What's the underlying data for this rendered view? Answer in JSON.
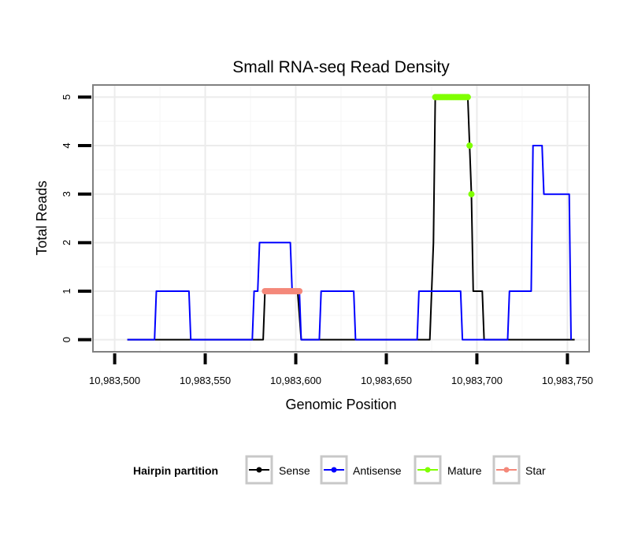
{
  "chart_data": {
    "type": "line",
    "title": "Small RNA-seq Read Density",
    "xlabel": "Genomic Position",
    "ylabel": "Total Reads",
    "xlim": [
      10983488,
      10983762
    ],
    "ylim": [
      -0.25,
      5.25
    ],
    "x_ticks": [
      10983500,
      10983550,
      10983600,
      10983650,
      10983700,
      10983750
    ],
    "x_tick_labels": [
      "10,983,500",
      "10,983,550",
      "10,983,600",
      "10,983,650",
      "10,983,700",
      "10,983,750"
    ],
    "y_ticks": [
      0,
      1,
      2,
      3,
      4,
      5
    ],
    "y_tick_labels": [
      "0",
      "1",
      "2",
      "3",
      "4",
      "5"
    ],
    "grid": true,
    "legend": {
      "title": "Hairpin partition",
      "position": "bottom",
      "entries": [
        "Sense",
        "Antisense",
        "Mature",
        "Star"
      ]
    },
    "series": [
      {
        "name": "Sense",
        "color": "#000000",
        "style": "line",
        "x": [
          10983507,
          10983582,
          10983583,
          10983601,
          10983603,
          10983674,
          10983676,
          10983677,
          10983678,
          10983695,
          10983696,
          10983697,
          10983698,
          10983699,
          10983703,
          10983704,
          10983754
        ],
        "y": [
          0,
          0,
          1,
          1,
          0,
          0,
          2,
          5,
          5,
          5,
          4,
          3,
          1,
          1,
          1,
          0,
          0
        ]
      },
      {
        "name": "Antisense",
        "color": "#0000ff",
        "style": "line",
        "x": [
          10983507,
          10983522,
          10983523,
          10983532,
          10983541,
          10983542,
          10983576,
          10983577,
          10983578,
          10983579,
          10983580,
          10983589,
          10983597,
          10983598,
          10983602,
          10983603,
          10983613,
          10983614,
          10983623,
          10983632,
          10983633,
          10983667,
          10983668,
          10983677,
          10983691,
          10983692,
          10983717,
          10983718,
          10983730,
          10983731,
          10983734,
          10983736,
          10983737,
          10983748,
          10983751,
          10983752
        ],
        "y": [
          0,
          0,
          1,
          1,
          1,
          0,
          0,
          1,
          1,
          1,
          2,
          2,
          2,
          1,
          1,
          0,
          0,
          1,
          1,
          1,
          0,
          0,
          1,
          1,
          1,
          0,
          0,
          1,
          1,
          4,
          4,
          4,
          3,
          3,
          3,
          0
        ]
      },
      {
        "name": "Mature",
        "color": "#7fff00",
        "style": "points",
        "x": [
          10983677,
          10983678,
          10983679,
          10983680,
          10983681,
          10983682,
          10983683,
          10983684,
          10983685,
          10983686,
          10983687,
          10983688,
          10983689,
          10983690,
          10983691,
          10983692,
          10983693,
          10983694,
          10983695,
          10983696,
          10983697
        ],
        "y": [
          5,
          5,
          5,
          5,
          5,
          5,
          5,
          5,
          5,
          5,
          5,
          5,
          5,
          5,
          5,
          5,
          5,
          5,
          5,
          4,
          3
        ]
      },
      {
        "name": "Star",
        "color": "#f4887a",
        "style": "points",
        "x": [
          10983583,
          10983584,
          10983585,
          10983586,
          10983587,
          10983588,
          10983589,
          10983590,
          10983591,
          10983592,
          10983593,
          10983594,
          10983595,
          10983596,
          10983597,
          10983598,
          10983599,
          10983600,
          10983601,
          10983602
        ],
        "y": [
          1,
          1,
          1,
          1,
          1,
          1,
          1,
          1,
          1,
          1,
          1,
          1,
          1,
          1,
          1,
          1,
          1,
          1,
          1,
          1
        ]
      }
    ]
  },
  "colors": {
    "panel_border": "#808080",
    "grid_major": "#ececec",
    "grid_minor": "#f6f6f6",
    "legend_key_border": "#c8c8c8"
  }
}
